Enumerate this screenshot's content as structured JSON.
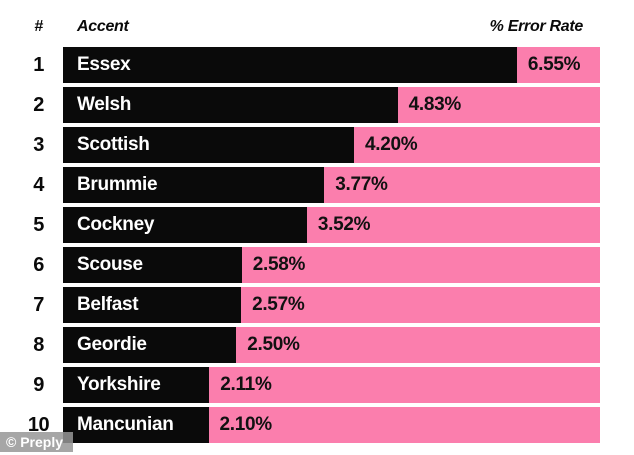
{
  "header": {
    "rank_label": "#",
    "accent_label": "Accent",
    "value_label": "% Error Rate"
  },
  "watermark": "© Preply",
  "colors": {
    "bar_black": "#0a0a0a",
    "track_pink": "#FB7EAD",
    "background": "#ffffff",
    "accent_text": "#ffffff",
    "value_text": "#111111",
    "watermark_bg": "#969696",
    "watermark_text": "#ffffff"
  },
  "chart_data": {
    "type": "bar",
    "orientation": "horizontal",
    "title": "",
    "xlabel": "% Error Rate",
    "ylabel": "Accent",
    "grid": false,
    "legend": false,
    "xlim": [
      0,
      7.75
    ],
    "ranks": [
      1,
      2,
      3,
      4,
      5,
      6,
      7,
      8,
      9,
      10
    ],
    "categories": [
      "Essex",
      "Welsh",
      "Scottish",
      "Brummie",
      "Cockney",
      "Scouse",
      "Belfast",
      "Geordie",
      "Yorkshire",
      "Mancunian"
    ],
    "values": [
      6.55,
      4.83,
      4.2,
      3.77,
      3.52,
      2.58,
      2.57,
      2.5,
      2.11,
      2.1
    ],
    "value_labels": [
      "6.55%",
      "4.83%",
      "4.20%",
      "3.77%",
      "3.52%",
      "2.58%",
      "2.57%",
      "2.50%",
      "2.11%",
      "2.10%"
    ]
  }
}
